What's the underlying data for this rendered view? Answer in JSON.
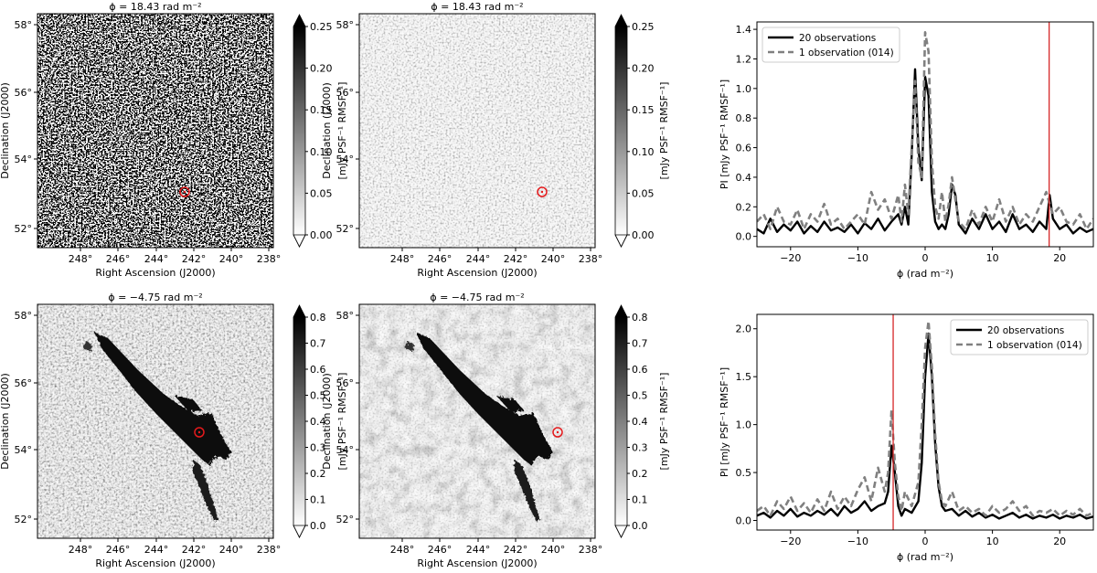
{
  "panels": [
    {
      "title": "ϕ = 18.43 rad m⁻²",
      "xlabel": "Right Ascension (J2000)",
      "ylabel": "Declination (J2000)",
      "xticks": [
        "248°",
        "246°",
        "244°",
        "242°",
        "240°",
        "238°"
      ],
      "yticks": [
        "52°",
        "54°",
        "56°",
        "58°"
      ],
      "colorbar_label": "[mJy PSF⁻¹ RMSF⁻¹]",
      "colorbar_ticks": [
        "0.00",
        "0.05",
        "0.10",
        "0.15",
        "0.20",
        "0.25"
      ],
      "style": "noisy"
    },
    {
      "title": "ϕ = 18.43 rad m⁻²",
      "xlabel": "Right Ascension (J2000)",
      "ylabel": "Declination (J2000)",
      "xticks": [
        "248°",
        "246°",
        "244°",
        "242°",
        "240°",
        "238°"
      ],
      "yticks": [
        "52°",
        "54°",
        "56°",
        "58°"
      ],
      "colorbar_label": "[mJy PSF⁻¹ RMSF⁻¹]",
      "colorbar_ticks": [
        "0.00",
        "0.05",
        "0.10",
        "0.15",
        "0.20",
        "0.25"
      ],
      "style": "faint"
    },
    {
      "title": "ϕ = −4.75 rad m⁻²",
      "xlabel": "Right Ascension (J2000)",
      "ylabel": "Declination (J2000)",
      "xticks": [
        "248°",
        "246°",
        "244°",
        "242°",
        "240°",
        "238°"
      ],
      "yticks": [
        "52°",
        "54°",
        "56°",
        "58°"
      ],
      "colorbar_label": "[mJy PSF⁻¹ RMSF⁻¹]",
      "colorbar_ticks": [
        "0.0",
        "0.1",
        "0.2",
        "0.3",
        "0.4",
        "0.5",
        "0.6",
        "0.7",
        "0.8"
      ],
      "style": "structure"
    },
    {
      "title": "ϕ = −4.75 rad m⁻²",
      "xlabel": "Right Ascension (J2000)",
      "ylabel": "Declination (J2000)",
      "xticks": [
        "248°",
        "246°",
        "244°",
        "242°",
        "240°",
        "238°"
      ],
      "yticks": [
        "52°",
        "54°",
        "56°",
        "58°"
      ],
      "colorbar_label": "[mJy PSF⁻¹ RMSF⁻¹]",
      "colorbar_ticks": [
        "0.0",
        "0.1",
        "0.2",
        "0.3",
        "0.4",
        "0.5",
        "0.6",
        "0.7",
        "0.8"
      ],
      "style": "structure-clean"
    }
  ],
  "chart_data": [
    {
      "type": "line",
      "title": "",
      "xlabel": "ϕ (rad m⁻²)",
      "ylabel": "PI [mJy PSF⁻¹ RMSF⁻¹]",
      "xlim": [
        -25,
        25
      ],
      "ylim": [
        -0.07,
        1.45
      ],
      "xticks": [
        -20,
        -10,
        0,
        10,
        20
      ],
      "yticks": [
        "0.0",
        "0.2",
        "0.4",
        "0.6",
        "0.8",
        "1.0",
        "1.2",
        "1.4"
      ],
      "marker_line": 18.43,
      "legend": "top-left",
      "series": [
        {
          "name": "20 observations",
          "color": "#000000",
          "x": [
            -25,
            -24,
            -23,
            -22,
            -21,
            -20,
            -19,
            -18,
            -17,
            -16,
            -15,
            -14,
            -13,
            -12,
            -11,
            -10,
            -9,
            -8,
            -7,
            -6,
            -5,
            -4,
            -3.5,
            -3,
            -2.5,
            -2,
            -1.5,
            -1,
            -0.5,
            0,
            0.5,
            1,
            1.5,
            2,
            2.5,
            3,
            3.5,
            4,
            4.5,
            5,
            6,
            7,
            8,
            9,
            10,
            11,
            12,
            13,
            14,
            15,
            16,
            17,
            18,
            18.5,
            19,
            20,
            21,
            22,
            23,
            24,
            25
          ],
          "y": [
            0.05,
            0.02,
            0.12,
            0.03,
            0.08,
            0.04,
            0.1,
            0.02,
            0.07,
            0.03,
            0.1,
            0.04,
            0.06,
            0.03,
            0.08,
            0.02,
            0.09,
            0.05,
            0.12,
            0.04,
            0.1,
            0.15,
            0.08,
            0.2,
            0.08,
            0.55,
            1.13,
            0.6,
            0.38,
            1.08,
            0.95,
            0.3,
            0.1,
            0.05,
            0.08,
            0.05,
            0.15,
            0.35,
            0.28,
            0.08,
            0.02,
            0.12,
            0.05,
            0.15,
            0.05,
            0.1,
            0.03,
            0.15,
            0.05,
            0.08,
            0.03,
            0.1,
            0.05,
            0.28,
            0.12,
            0.05,
            0.08,
            0.02,
            0.06,
            0.03,
            0.05
          ]
        },
        {
          "name": "1 observation (014)",
          "color": "#808080",
          "x": [
            -25,
            -24,
            -23,
            -22,
            -21,
            -20,
            -19,
            -18,
            -17,
            -16,
            -15,
            -14,
            -13,
            -12,
            -11,
            -10,
            -9,
            -8,
            -7,
            -6,
            -5,
            -4,
            -3.5,
            -3,
            -2.5,
            -2,
            -1.5,
            -1,
            -0.5,
            0,
            0.5,
            1,
            1.5,
            2,
            2.5,
            3,
            3.5,
            4,
            4.5,
            5,
            6,
            7,
            8,
            9,
            10,
            11,
            12,
            13,
            14,
            15,
            16,
            17,
            18,
            18.5,
            19,
            20,
            21,
            22,
            23,
            24,
            25
          ],
          "y": [
            0.1,
            0.15,
            0.05,
            0.2,
            0.1,
            0.08,
            0.18,
            0.05,
            0.15,
            0.1,
            0.22,
            0.08,
            0.12,
            0.05,
            0.1,
            0.15,
            0.08,
            0.3,
            0.18,
            0.25,
            0.12,
            0.28,
            0.1,
            0.35,
            0.15,
            0.6,
            1.05,
            0.5,
            0.4,
            1.38,
            1.25,
            0.5,
            0.2,
            0.12,
            0.3,
            0.1,
            0.22,
            0.4,
            0.25,
            0.1,
            0.05,
            0.18,
            0.08,
            0.2,
            0.1,
            0.25,
            0.1,
            0.2,
            0.08,
            0.15,
            0.1,
            0.2,
            0.3,
            0.22,
            0.15,
            0.2,
            0.1,
            0.08,
            0.15,
            0.05,
            0.12
          ]
        }
      ]
    },
    {
      "type": "line",
      "title": "",
      "xlabel": "ϕ (rad m⁻²)",
      "ylabel": "PI [mJy PSF⁻¹ RMSF⁻¹]",
      "xlim": [
        -25,
        25
      ],
      "ylim": [
        -0.1,
        2.15
      ],
      "xticks": [
        -20,
        -10,
        0,
        10,
        20
      ],
      "yticks": [
        "0.0",
        "0.5",
        "1.0",
        "1.5",
        "2.0"
      ],
      "marker_line": -4.75,
      "legend": "top-right",
      "series": [
        {
          "name": "20 observations",
          "color": "#000000",
          "x": [
            -25,
            -24,
            -23,
            -22,
            -21,
            -20,
            -19,
            -18,
            -17,
            -16,
            -15,
            -14,
            -13,
            -12,
            -11,
            -10,
            -9,
            -8,
            -7,
            -6,
            -5.5,
            -5,
            -4.5,
            -4,
            -3.5,
            -3,
            -2,
            -1,
            -0.5,
            0,
            0.5,
            1,
            1.5,
            2,
            2.5,
            3,
            4,
            5,
            6,
            7,
            8,
            9,
            10,
            11,
            12,
            13,
            14,
            15,
            16,
            17,
            18,
            19,
            20,
            21,
            22,
            23,
            24,
            25
          ],
          "y": [
            0.05,
            0.08,
            0.03,
            0.1,
            0.05,
            0.12,
            0.04,
            0.08,
            0.05,
            0.1,
            0.06,
            0.12,
            0.05,
            0.15,
            0.08,
            0.12,
            0.2,
            0.1,
            0.15,
            0.18,
            0.3,
            0.78,
            0.5,
            0.15,
            0.05,
            0.12,
            0.08,
            0.2,
            0.6,
            1.5,
            1.95,
            1.5,
            0.8,
            0.35,
            0.15,
            0.1,
            0.12,
            0.05,
            0.1,
            0.04,
            0.08,
            0.03,
            0.06,
            0.02,
            0.05,
            0.08,
            0.03,
            0.06,
            0.02,
            0.05,
            0.03,
            0.06,
            0.02,
            0.05,
            0.03,
            0.06,
            0.02,
            0.04
          ]
        },
        {
          "name": "1 observation (014)",
          "color": "#808080",
          "x": [
            -25,
            -24,
            -23,
            -22,
            -21,
            -20,
            -19,
            -18,
            -17,
            -16,
            -15,
            -14,
            -13,
            -12,
            -11,
            -10,
            -9,
            -8,
            -7,
            -6,
            -5.5,
            -5,
            -4.5,
            -4,
            -3.5,
            -3,
            -2,
            -1,
            -0.5,
            0,
            0.5,
            1,
            1.5,
            2,
            2.5,
            3,
            4,
            5,
            6,
            7,
            8,
            9,
            10,
            11,
            12,
            13,
            14,
            15,
            16,
            17,
            18,
            19,
            20,
            21,
            22,
            23,
            24,
            25
          ],
          "y": [
            0.1,
            0.15,
            0.05,
            0.2,
            0.12,
            0.25,
            0.1,
            0.18,
            0.08,
            0.22,
            0.1,
            0.3,
            0.12,
            0.25,
            0.15,
            0.32,
            0.45,
            0.2,
            0.55,
            0.3,
            0.5,
            1.15,
            0.6,
            0.25,
            0.1,
            0.3,
            0.15,
            0.4,
            1.0,
            1.8,
            2.08,
            1.6,
            0.9,
            0.4,
            0.2,
            0.15,
            0.3,
            0.1,
            0.15,
            0.08,
            0.12,
            0.05,
            0.15,
            0.08,
            0.12,
            0.2,
            0.1,
            0.15,
            0.05,
            0.1,
            0.08,
            0.12,
            0.05,
            0.1,
            0.06,
            0.12,
            0.05,
            0.08
          ]
        }
      ]
    }
  ]
}
